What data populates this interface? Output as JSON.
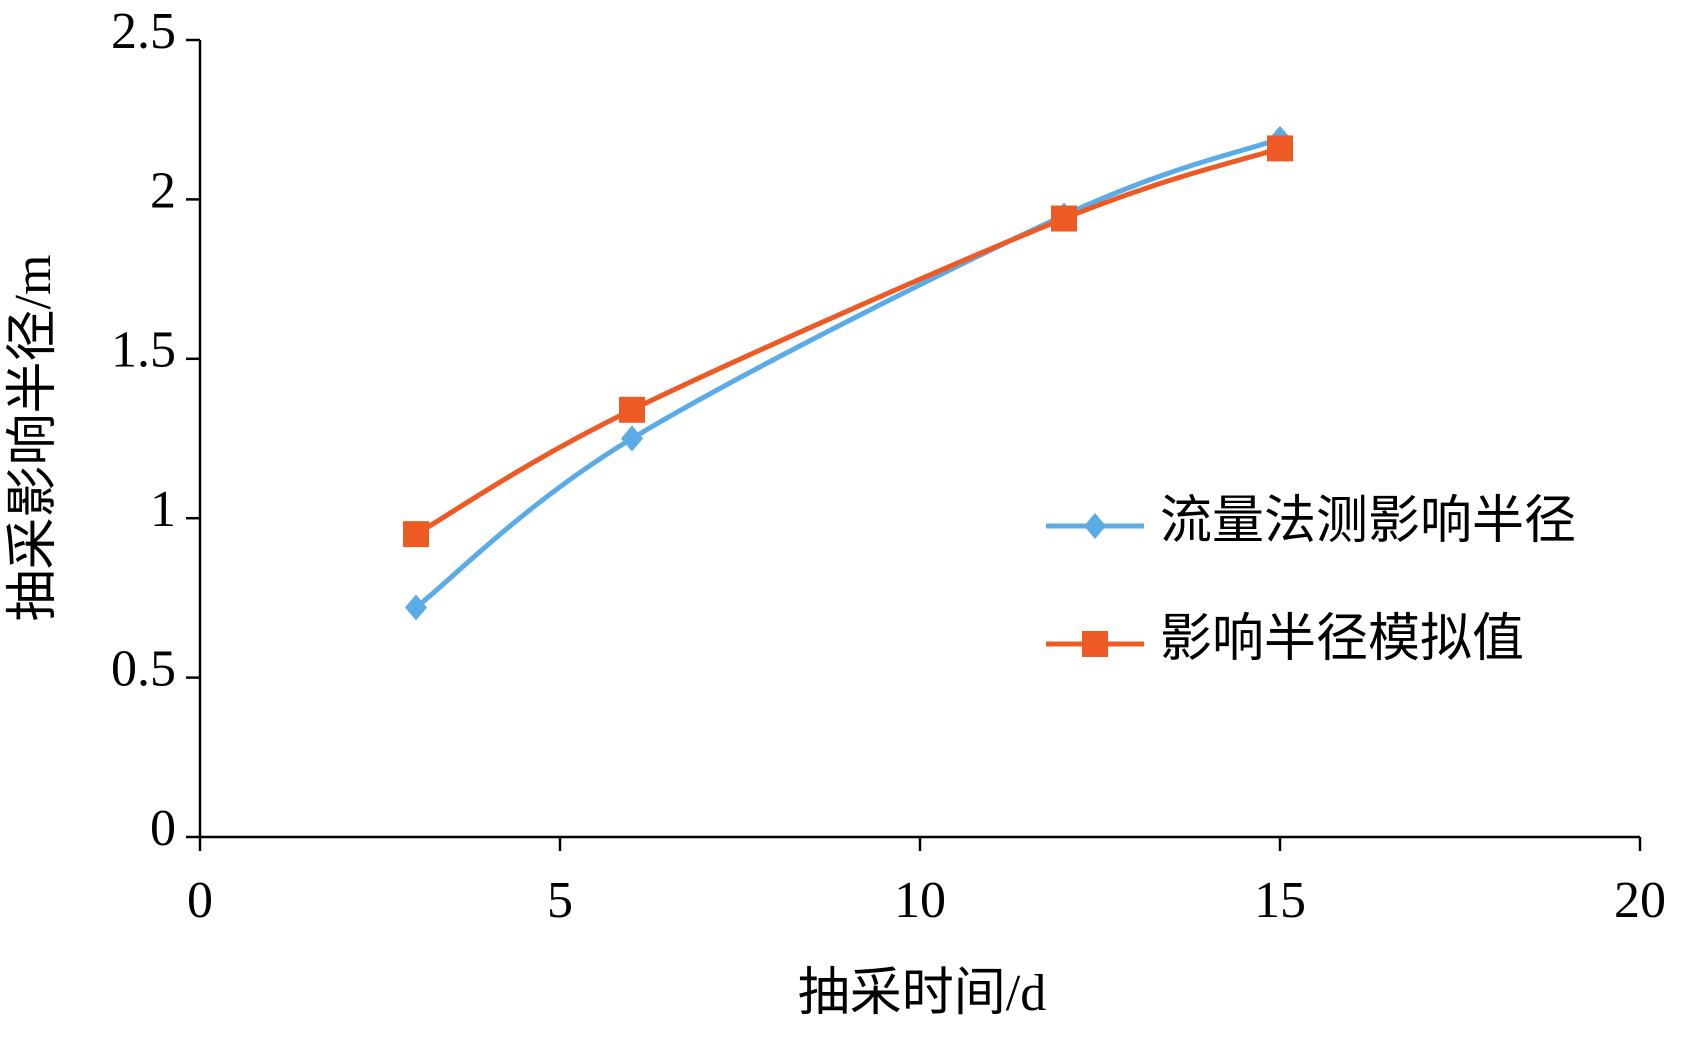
{
  "chart_data": {
    "type": "line",
    "x_label": "抽采时间/d",
    "y_label": "抽采影响半径/m",
    "x": [
      3,
      6,
      12,
      15
    ],
    "series": [
      {
        "name": "流量法测影响半径",
        "color": "#5aabe6",
        "marker": "diamond",
        "values": [
          0.72,
          1.25,
          1.95,
          2.19
        ]
      },
      {
        "name": "影响半径模拟值",
        "color": "#ee5a24",
        "marker": "square",
        "values": [
          0.95,
          1.34,
          1.94,
          2.16
        ]
      }
    ],
    "smooth": true,
    "xlim": [
      0,
      20
    ],
    "xticks": [
      0,
      5,
      10,
      15,
      20
    ],
    "ylim": [
      0,
      2.5
    ],
    "yticks": [
      0,
      0.5,
      1,
      1.5,
      2,
      2.5
    ],
    "grid": false,
    "legend": "right"
  }
}
